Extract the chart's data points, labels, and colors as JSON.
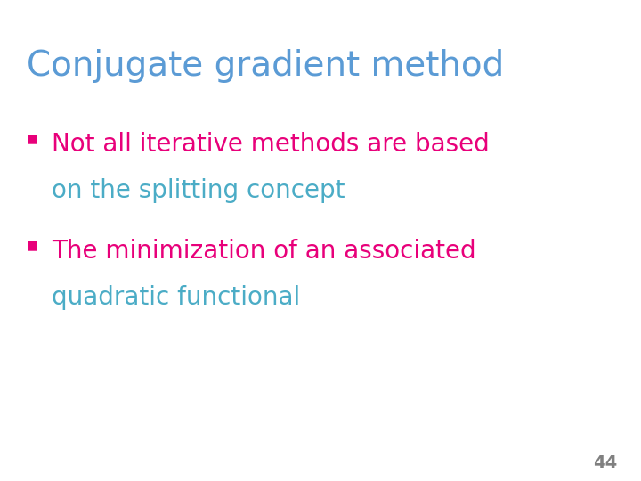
{
  "title": "Conjugate gradient method",
  "title_color": "#5B9BD5",
  "title_fontsize": 28,
  "bullet_color": "#E8007A",
  "bullets": [
    {
      "line1": "Not all iterative methods are based",
      "line2": "on the splitting concept",
      "line1_color": "#E8007A",
      "line2_color": "#4BACC6"
    },
    {
      "line1": "The minimization of an associated",
      "line2": "quadratic functional",
      "line1_color": "#E8007A",
      "line2_color": "#4BACC6"
    }
  ],
  "bullet_fontsize": 20,
  "bullet_char": "■",
  "page_number": "44",
  "page_number_color": "#808080",
  "page_number_fontsize": 14,
  "background_color": "#FFFFFF"
}
